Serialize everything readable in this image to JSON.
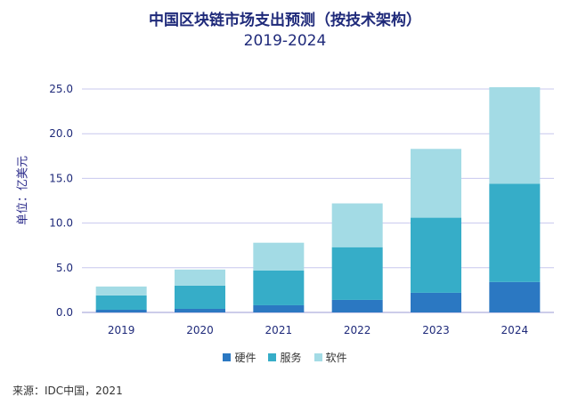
{
  "chart_data": {
    "type": "bar",
    "stacked": true,
    "title": "中国区块链市场支出预测（按技术架构）",
    "subtitle": "2019-2024",
    "ylabel": "单位：亿美元",
    "categories": [
      "2019",
      "2020",
      "2021",
      "2022",
      "2023",
      "2024"
    ],
    "series": [
      {
        "name": "硬件",
        "color": "#2b78c2",
        "values": [
          0.3,
          0.4,
          0.8,
          1.4,
          2.2,
          3.4
        ]
      },
      {
        "name": "服务",
        "color": "#36adc8",
        "values": [
          1.6,
          2.6,
          3.9,
          5.9,
          8.4,
          11.0
        ]
      },
      {
        "name": "软件",
        "color": "#a3dbe5",
        "values": [
          1.0,
          1.8,
          3.1,
          4.9,
          7.7,
          10.8
        ]
      }
    ],
    "ylim": [
      0,
      25
    ],
    "yticks": [
      "0.0",
      "5.0",
      "10.0",
      "15.0",
      "20.0",
      "25.0"
    ],
    "grid": true,
    "legend": "bottom"
  },
  "source": "来源：IDC中国，2021"
}
